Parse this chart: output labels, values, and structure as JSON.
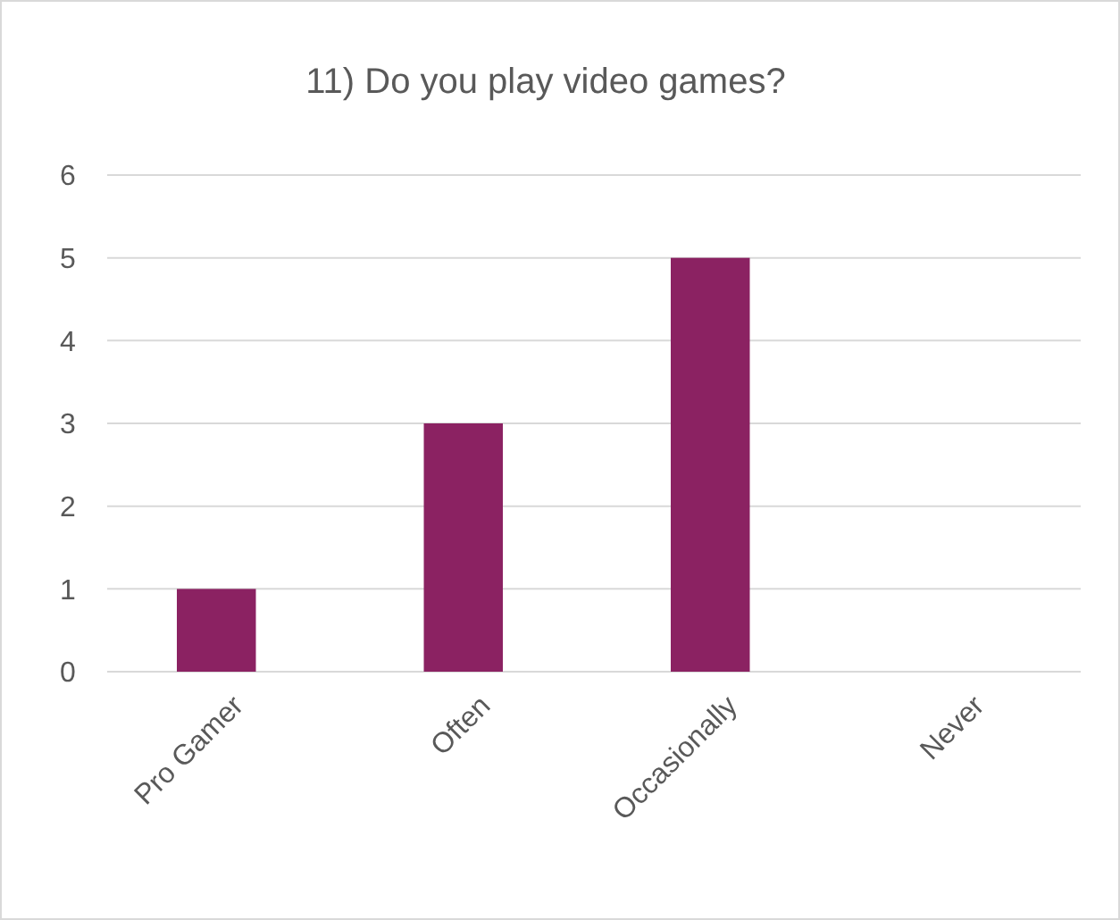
{
  "chart_data": {
    "type": "bar",
    "title": "11) Do you play video games?",
    "categories": [
      "Pro Gamer",
      "Often",
      "Occasionally",
      "Never"
    ],
    "values": [
      1,
      3,
      5,
      0
    ],
    "color": "#8b2262",
    "ylim": [
      0,
      6
    ],
    "yticks": [
      0,
      1,
      2,
      3,
      4,
      5,
      6
    ],
    "grid": "y"
  }
}
